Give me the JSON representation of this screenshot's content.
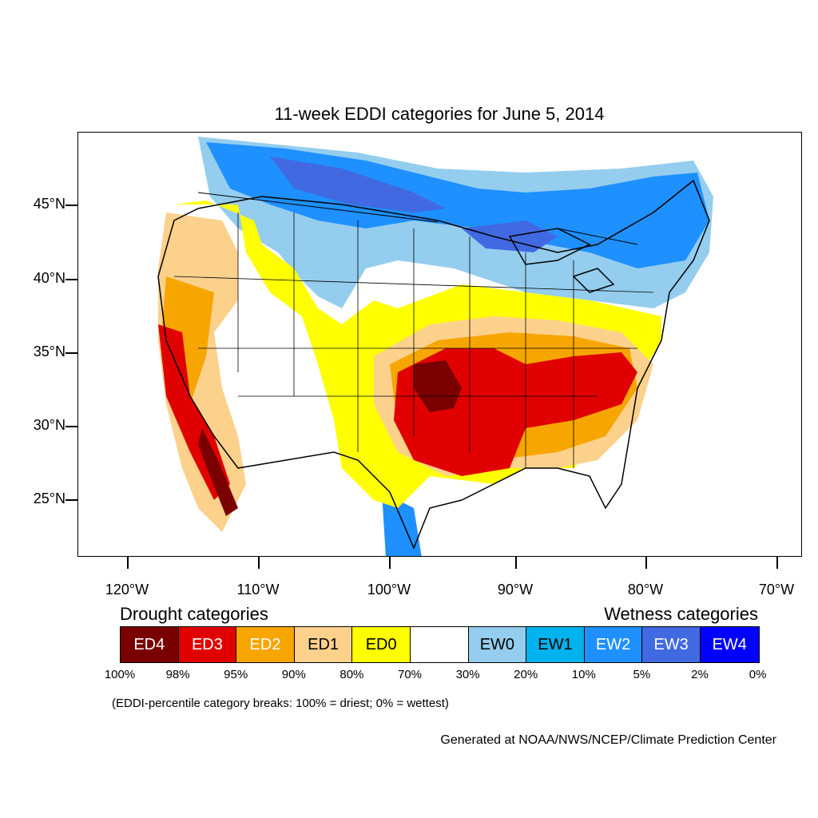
{
  "title": "11-week EDDI categories for June 5, 2014",
  "map": {
    "lat_labels": [
      "45°N",
      "40°N",
      "35°N",
      "30°N",
      "25°N"
    ],
    "lon_labels": [
      "120°W",
      "110°W",
      "100°W",
      "90°W",
      "80°W",
      "70°W"
    ],
    "colors": {
      "ED4": "#7a0000",
      "ED3": "#e00000",
      "ED2": "#f7a500",
      "ED1": "#fcd18c",
      "ED0": "#ffff00",
      "none": "#ffffff",
      "EW0": "#94cdee",
      "EW1": "#00b2ee",
      "EW2": "#1e90ff",
      "EW3": "#4169e1",
      "EW4": "#0000ff"
    }
  },
  "legend": {
    "drought_heading": "Drought categories",
    "wetness_heading": "Wetness categories",
    "categories": [
      {
        "label": "ED4",
        "color": "#7a0000",
        "text_color": "#ffffff"
      },
      {
        "label": "ED3",
        "color": "#e00000",
        "text_color": "#ffffff"
      },
      {
        "label": "ED2",
        "color": "#f7a500",
        "text_color": "#ffffff"
      },
      {
        "label": "ED1",
        "color": "#fcd18c",
        "text_color": "#000000"
      },
      {
        "label": "ED0",
        "color": "#ffff00",
        "text_color": "#000000"
      },
      {
        "label": "",
        "color": "#ffffff",
        "text_color": "#000000"
      },
      {
        "label": "EW0",
        "color": "#94cdee",
        "text_color": "#000000"
      },
      {
        "label": "EW1",
        "color": "#00b2ee",
        "text_color": "#000000"
      },
      {
        "label": "EW2",
        "color": "#1e90ff",
        "text_color": "#ffffff"
      },
      {
        "label": "EW3",
        "color": "#4169e1",
        "text_color": "#ffffff"
      },
      {
        "label": "EW4",
        "color": "#0000ff",
        "text_color": "#ffffff"
      }
    ],
    "breaks": [
      "100%",
      "98%",
      "95%",
      "90%",
      "80%",
      "70%",
      "30%",
      "20%",
      "10%",
      "5%",
      "2%",
      "0%"
    ],
    "note": "(EDDI-percentile category breaks: 100% = driest; 0% = wettest)"
  },
  "credit": "Generated at NOAA/NWS/NCEP/Climate Prediction Center"
}
